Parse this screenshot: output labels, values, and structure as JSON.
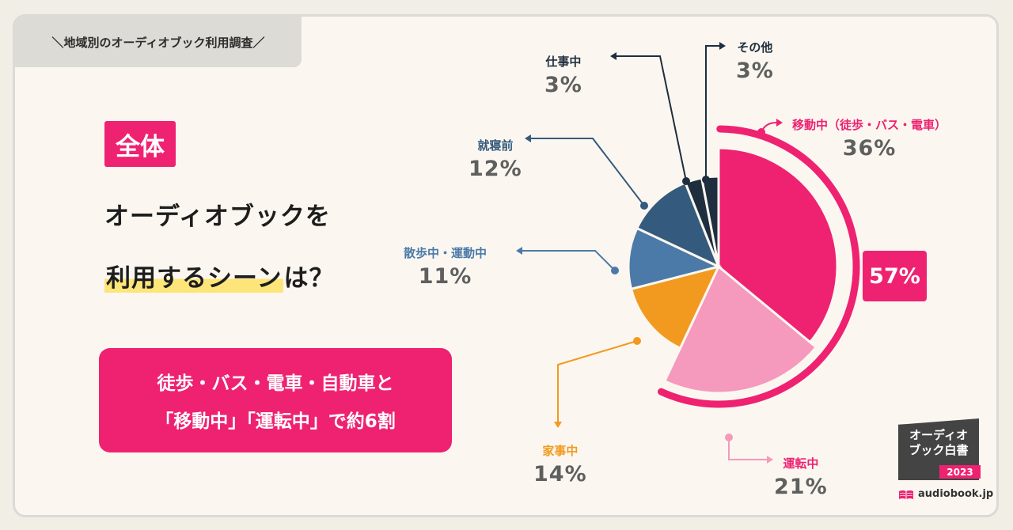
{
  "header": {
    "tag": "＼地域別のオーディオブック利用調査／"
  },
  "left": {
    "badge": "全体",
    "question_line1": "オーディオブックを",
    "question_line2_highlight": "利用するシーン",
    "question_line2_rest": "は？",
    "cta_line1": "徒歩・バス・電車・自動車と",
    "cta_line2": "「移動中」「運転中」で約6割"
  },
  "chart_data": {
    "type": "pie",
    "title": "",
    "series": [
      {
        "name": "移動中（徒歩・バス・電車）",
        "value": 36,
        "label": "36%",
        "color": "#ee2271"
      },
      {
        "name": "運転中",
        "value": 21,
        "label": "21%",
        "color": "#f599bd"
      },
      {
        "name": "家事中",
        "value": 14,
        "label": "14%",
        "color": "#f29a1f"
      },
      {
        "name": "散歩中・運動中",
        "value": 11,
        "label": "11%",
        "color": "#4b7aa8"
      },
      {
        "name": "就寝前",
        "value": 12,
        "label": "12%",
        "color": "#345a7d"
      },
      {
        "name": "仕事中",
        "value": 3,
        "label": "3%",
        "color": "#1f2e3e"
      },
      {
        "name": "その他",
        "value": 3,
        "label": "3%",
        "color": "#1f2e3e"
      }
    ],
    "group_total": {
      "label": "57%",
      "members": [
        "移動中（徒歩・バス・電車）",
        "運転中"
      ]
    }
  },
  "brand": {
    "logo_text_line1": "オーディオ",
    "logo_text_line2": "ブック白書",
    "year": "2023",
    "site": "audiobook.jp"
  },
  "colors": {
    "accent": "#ee2271",
    "background": "#fbf7f0"
  }
}
